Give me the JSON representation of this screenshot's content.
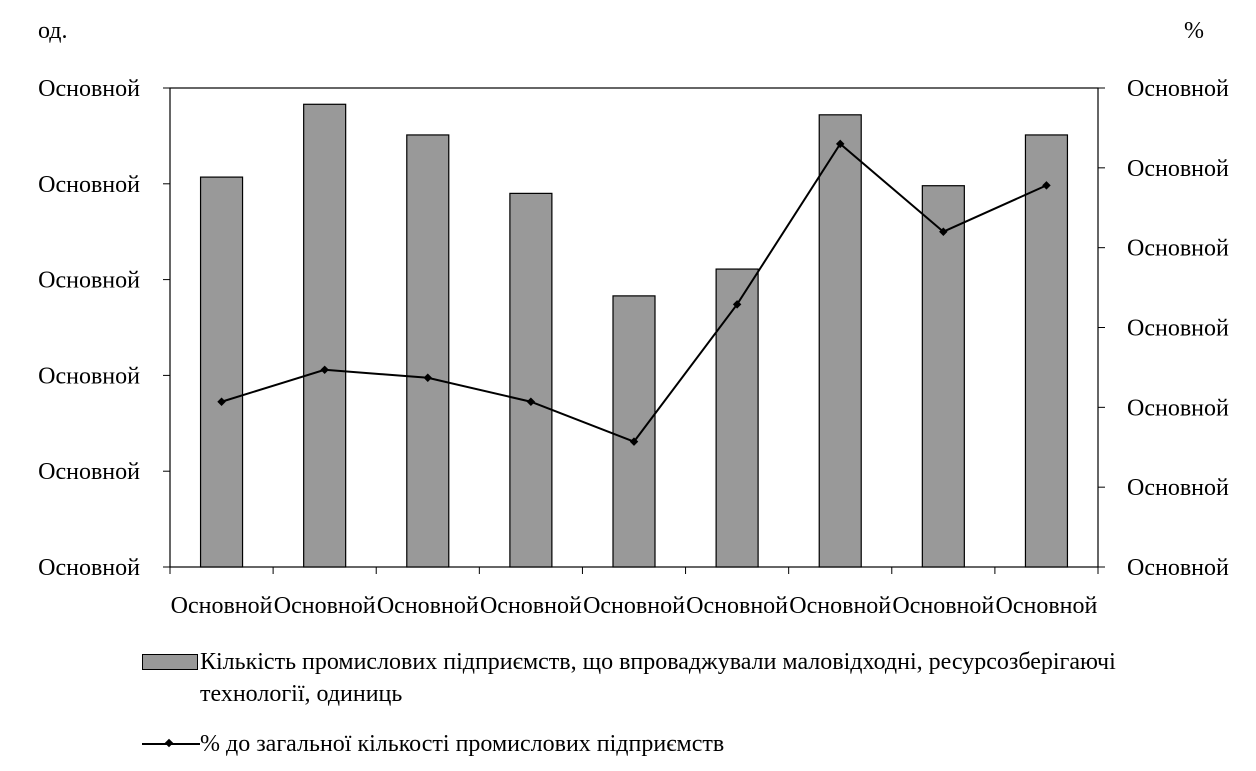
{
  "chart_data": {
    "type": "bar",
    "y_unit_left": "од.",
    "y_unit_right": "%",
    "left_ticks": [
      "Основной",
      "Основной",
      "Основной",
      "Основной",
      "Основной",
      "Основной"
    ],
    "right_ticks": [
      "Основной",
      "Основной",
      "Основной",
      "Основной",
      "Основной",
      "Основной",
      "Основной"
    ],
    "categories": [
      "Основной",
      "Основной",
      "Основной",
      "Основной",
      "Основной",
      "Основной",
      "Основной",
      "Основной",
      "Основной"
    ],
    "left_scale": [
      0,
      5
    ],
    "right_scale": [
      0,
      6
    ],
    "series": [
      {
        "name": "Кількість промислових підприємств, що впроваджували маловідходні, ресурсозберігаючі технології, одиниць",
        "kind": "bar",
        "axis": "left",
        "color": "#999999",
        "values": [
          4.07,
          4.83,
          4.51,
          3.9,
          2.83,
          3.11,
          4.72,
          3.98,
          4.51
        ]
      },
      {
        "name": "% до загальної кількості промислових підприємств",
        "kind": "line",
        "axis": "right",
        "color": "#000000",
        "values": [
          2.07,
          2.47,
          2.37,
          2.07,
          1.57,
          3.29,
          5.3,
          4.2,
          4.78
        ]
      }
    ],
    "grid": false,
    "legend_position": "bottom"
  },
  "legend": {
    "bars_label": "Кількість промислових підприємств, що впроваджували маловідходні, ресурсозберігаючі технології, одиниць",
    "line_label": "% до загальної кількості промислових підприємств"
  }
}
